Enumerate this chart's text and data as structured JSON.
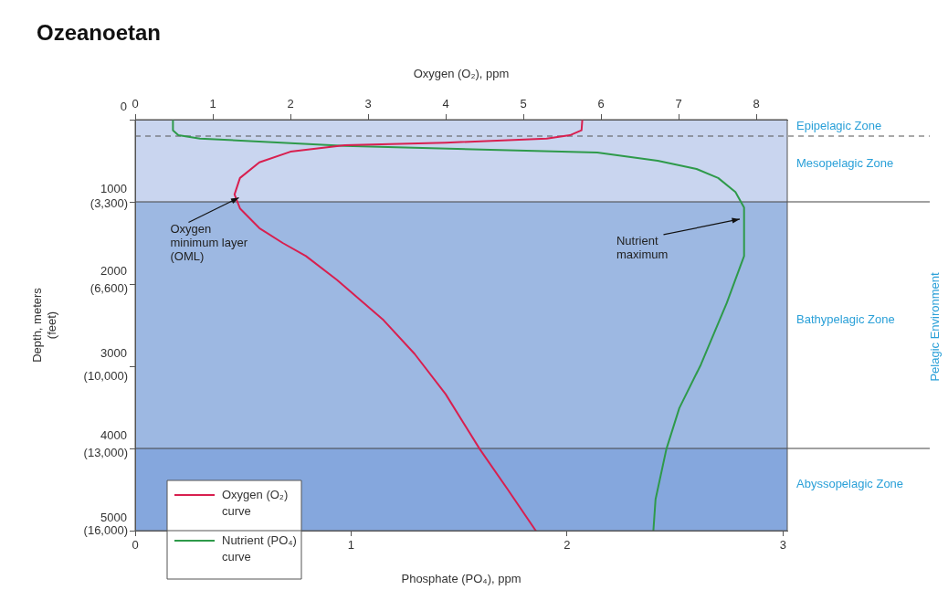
{
  "chart_data": {
    "type": "line",
    "title": "Ozeanoetan",
    "xlabel": "Phosphate (PO₄), ppm",
    "x2label": "Oxygen (O₂), ppm",
    "y2label": "Depth, meters\n(feet)",
    "xlim": [
      0,
      3.02
    ],
    "xticks": [
      0,
      1,
      2,
      3
    ],
    "x2lim": [
      0,
      8.4
    ],
    "x2ticks": [
      0,
      1,
      2,
      3,
      4,
      5,
      6,
      7,
      8
    ],
    "ylim": [
      5000,
      0
    ],
    "yticks": [
      0,
      1000,
      2000,
      3000,
      4000,
      5000
    ],
    "y2lim": [
      16000,
      0
    ],
    "y2ticks": [
      {
        "value": 3300,
        "label": "(3,300)"
      },
      {
        "value": 6600,
        "label": "(6,600)"
      },
      {
        "value": 10000,
        "label": "(10,000)"
      },
      {
        "value": 13000,
        "label": "(13,000)"
      },
      {
        "value": 16000,
        "label": "(16,000)"
      }
    ],
    "series": [
      {
        "name": "Oxygen (O₂) curve",
        "color": "#d81f4f",
        "axis": "x2",
        "x": [
          5.76,
          5.75,
          5.6,
          5.3,
          4.0,
          2.7,
          2.0,
          1.6,
          1.35,
          1.28,
          1.35,
          1.6,
          1.9,
          2.2,
          2.6,
          3.2,
          3.6,
          4.0,
          4.44,
          4.8,
          5.16
        ],
        "values": [
          0,
          130,
          190,
          230,
          280,
          310,
          390,
          520,
          710,
          910,
          1080,
          1320,
          1500,
          1660,
          1950,
          2440,
          2850,
          3340,
          4010,
          4500,
          5000
        ]
      },
      {
        "name": "Nutrient (PO₄) curve",
        "color": "#2e9a4a",
        "x": [
          0.175,
          0.175,
          0.2,
          0.3,
          0.97,
          2.14,
          2.42,
          2.6,
          2.7,
          2.78,
          2.82,
          2.82,
          2.74,
          2.62,
          2.52,
          2.46,
          2.41,
          2.4
        ],
        "values": [
          0,
          130,
          190,
          230,
          320,
          400,
          500,
          600,
          710,
          880,
          1070,
          1660,
          2230,
          2980,
          3510,
          4010,
          4620,
          5000
        ]
      }
    ],
    "bands": [
      {
        "axis": "y",
        "from": 0,
        "to": 200,
        "label": "Epipelagic Zone",
        "color": "#c9d5ef"
      },
      {
        "axis": "y",
        "from": 200,
        "to": 1000,
        "label": "Mesopelagic Zone",
        "color": "#c9d5ef"
      },
      {
        "axis": "y",
        "from": 1000,
        "to": 4000,
        "label": "Bathypelagic Zone",
        "color": "#9db8e2"
      },
      {
        "axis": "y",
        "from": 4000,
        "to": 5000,
        "label": "Abyssopelagic Zone",
        "color": "#85a7dd"
      }
    ],
    "ref_lines": [
      {
        "axis": "y",
        "value": 200,
        "line_style": "dashed",
        "color": "#555555"
      },
      {
        "axis": "y",
        "value": 1000,
        "color": "#444444"
      },
      {
        "axis": "y",
        "value": 4000,
        "color": "#444444"
      }
    ],
    "annotations": [
      {
        "text": "Oxygen minimum layer (OML)",
        "x": 0.48,
        "y": 950
      },
      {
        "text": "Nutrient maximum",
        "x": 2.8,
        "y": 1210
      },
      "Pelagic Environment"
    ],
    "legend": "bottom left",
    "marker": "none",
    "line_style": "solid",
    "grid": false
  }
}
